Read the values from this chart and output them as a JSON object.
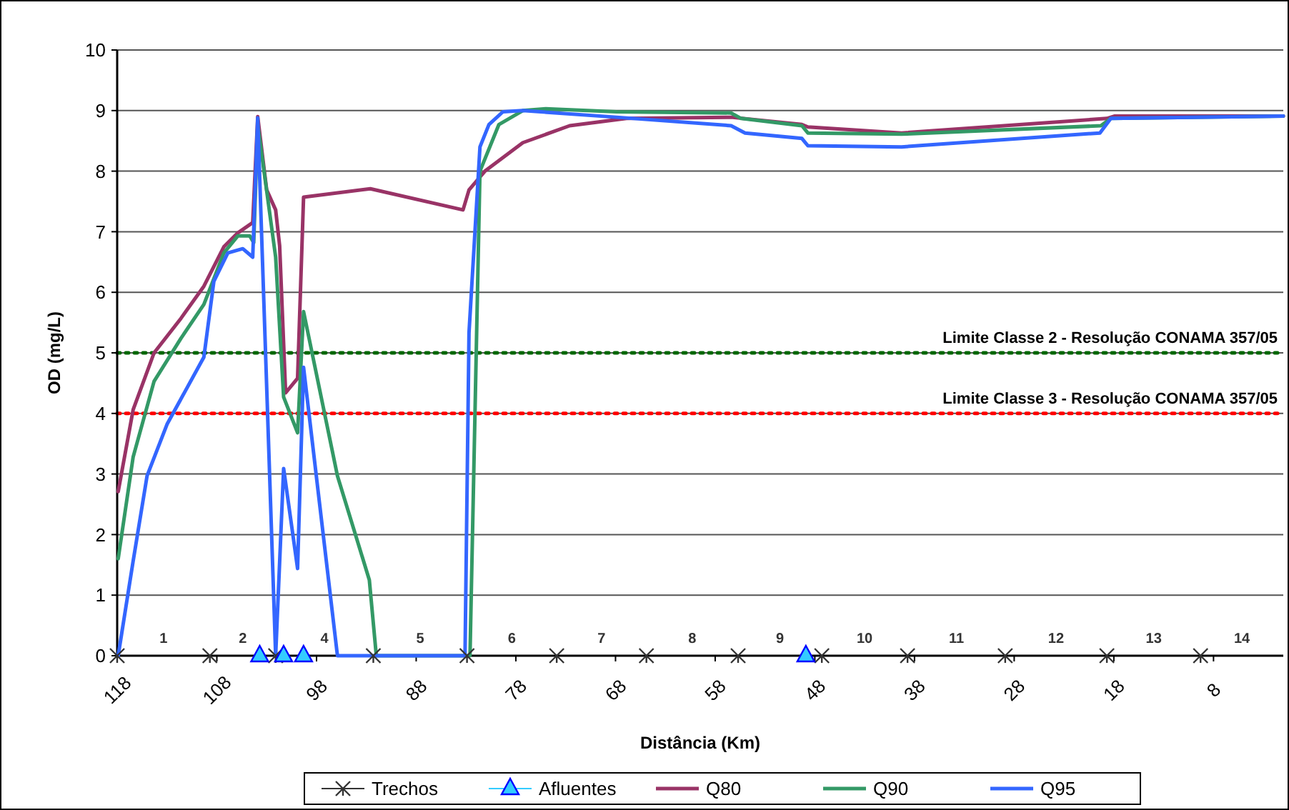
{
  "chart_data": {
    "type": "line",
    "xlabel": "Distância (Km)",
    "ylabel": "OD (mg/L)",
    "xlim": [
      118,
      1
    ],
    "ylim": [
      0,
      10
    ],
    "xticks": [
      118,
      108,
      98,
      88,
      78,
      68,
      58,
      48,
      38,
      28,
      18,
      8
    ],
    "yticks": [
      0,
      1,
      2,
      3,
      4,
      5,
      6,
      7,
      8,
      9,
      10
    ],
    "grid": "y",
    "legend": "bottom",
    "series": [
      {
        "name": "Trechos",
        "type": "scatter",
        "marker": "cross",
        "color": "#333333",
        "x": [
          118,
          108.7,
          102.1,
          92.3,
          82.9,
          73.9,
          64.9,
          55.7,
          47.3,
          38.7,
          28.9,
          18.7,
          9.3
        ],
        "values": [
          0,
          0,
          0,
          0,
          0,
          0,
          0,
          0,
          0,
          0,
          0,
          0,
          0
        ]
      },
      {
        "name": "Afluentes",
        "type": "scatter",
        "marker": "triangle",
        "color": "#33ccff",
        "x": [
          103.7,
          101.3,
          99.3,
          48.9
        ],
        "values": [
          0,
          0,
          0,
          0
        ]
      },
      {
        "name": "Q80",
        "color": "#993366",
        "marker": "none",
        "x": [
          117.9,
          116.4,
          114.3,
          111.6,
          109.3,
          107.3,
          105.9,
          104.4,
          103.9,
          103,
          102.1,
          101.7,
          101.1,
          99.9,
          99.3,
          92.6,
          83.3,
          82.7,
          81.1,
          77.3,
          72.6,
          66.9,
          56.4,
          49.3,
          48.7,
          39.3,
          18.7,
          17.9,
          1
        ],
        "values": [
          2.71,
          4.06,
          5.0,
          5.57,
          6.1,
          6.75,
          6.98,
          7.15,
          8.9,
          7.69,
          7.36,
          6.77,
          4.34,
          4.58,
          7.57,
          7.71,
          7.36,
          7.69,
          8.0,
          8.47,
          8.75,
          8.87,
          8.89,
          8.77,
          8.73,
          8.63,
          8.87,
          8.91,
          8.91
        ]
      },
      {
        "name": "Q90",
        "color": "#339966",
        "marker": "none",
        "x": [
          117.9,
          116.4,
          114.3,
          111.6,
          109.3,
          107.3,
          105.9,
          104.7,
          104.3,
          103.9,
          102.1,
          101.3,
          99.9,
          99.3,
          95.9,
          92.7,
          92,
          82.6,
          81.6,
          79.7,
          77.3,
          75,
          67.9,
          56.4,
          55.4,
          49.3,
          48.7,
          39.3,
          19.3,
          18.3,
          1
        ],
        "values": [
          1.6,
          3.28,
          4.53,
          5.24,
          5.8,
          6.65,
          6.93,
          6.93,
          6.82,
          8.77,
          6.58,
          4.27,
          3.68,
          5.68,
          2.97,
          1.25,
          0,
          0,
          8.0,
          8.77,
          9.0,
          9.03,
          8.98,
          8.96,
          8.87,
          8.75,
          8.63,
          8.61,
          8.75,
          8.87,
          8.91
        ]
      },
      {
        "name": "Q95",
        "color": "#3366ff",
        "marker": "none",
        "x": [
          117.9,
          116.4,
          115,
          113,
          109.3,
          108.3,
          106.9,
          105.4,
          104.4,
          103.9,
          102.1,
          101.3,
          99.9,
          99.3,
          95.9,
          83.1,
          82.7,
          81.6,
          80.7,
          79.3,
          77.3,
          67.9,
          56.4,
          55,
          49.3,
          48.7,
          39.3,
          19.4,
          18.3,
          1
        ],
        "values": [
          0,
          1.56,
          2.97,
          3.82,
          4.93,
          6.18,
          6.65,
          6.72,
          6.58,
          8.88,
          0,
          3.09,
          1.44,
          4.76,
          0,
          0,
          5.33,
          8.4,
          8.77,
          8.98,
          9.0,
          8.89,
          8.75,
          8.63,
          8.54,
          8.42,
          8.4,
          8.63,
          8.87,
          8.91
        ]
      }
    ],
    "ref_lines": [
      {
        "axis": "y",
        "value": 5,
        "label": "Limite Classe 2 - Resolução CONAMA 357/05",
        "color": "#006600",
        "line_style": "dotted"
      },
      {
        "axis": "y",
        "value": 4,
        "label": "Limite Classe 3 - Resolução CONAMA 357/05",
        "color": "#ff0000",
        "line_style": "dotted"
      }
    ],
    "annotations": [
      "1",
      "2",
      "4",
      "5",
      "6",
      "7",
      "8",
      "9",
      "10",
      "11",
      "12",
      "13",
      "14"
    ]
  }
}
